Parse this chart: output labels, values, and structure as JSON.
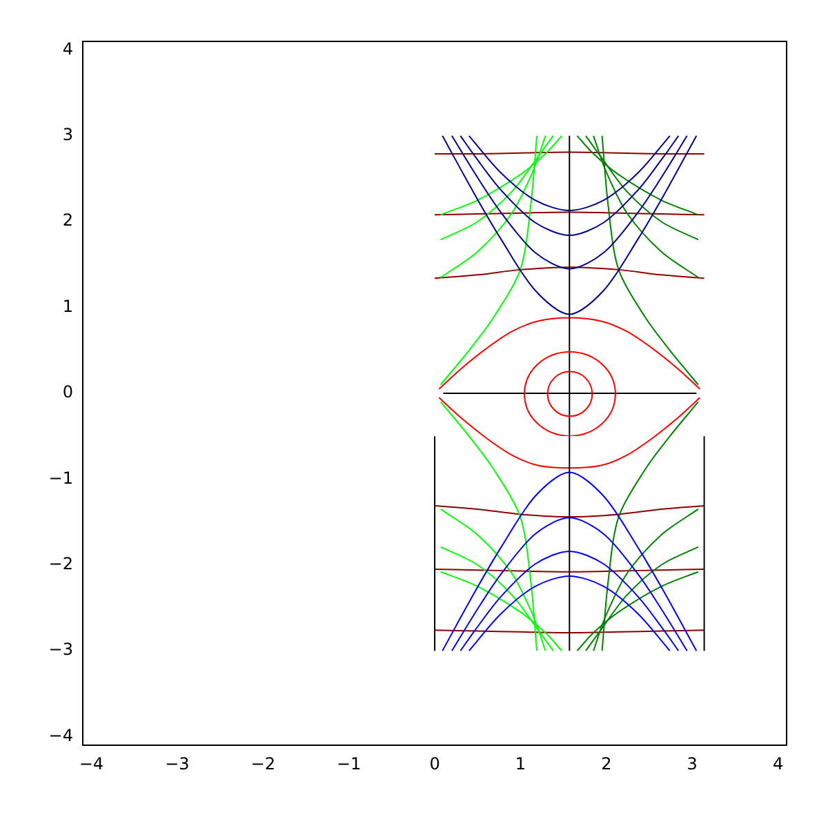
{
  "chart_data": {
    "type": "line",
    "xlim": [
      -4.1,
      4.1
    ],
    "ylim": [
      -4.1,
      4.1
    ],
    "xticks": [
      -4,
      -3,
      -2,
      -1,
      0,
      1,
      2,
      3,
      4
    ],
    "yticks": [
      -4,
      -3,
      -2,
      -1,
      0,
      1,
      2,
      3,
      4
    ],
    "grid": false,
    "legend": false,
    "marker": "none",
    "line_style": "solid",
    "series": [
      {
        "type": "line",
        "color": "#000000",
        "x": [
          1.57,
          1.57
        ],
        "values": [
          -3,
          3
        ]
      },
      {
        "type": "line",
        "color": "#000000",
        "x": [
          0.1,
          3.05
        ],
        "values": [
          0,
          0
        ]
      },
      {
        "type": "line",
        "color": "#000000",
        "x": [
          0,
          0
        ],
        "values": [
          -0.5,
          -3
        ]
      },
      {
        "type": "line",
        "color": "#000000",
        "x": [
          3.14,
          3.14
        ],
        "values": [
          -0.5,
          -3
        ]
      },
      {
        "type": "line",
        "color": "#00008b",
        "x": [
          0.09,
          0.47,
          0.77,
          1.17,
          1.57,
          1.97,
          2.37,
          2.67,
          3.05
        ],
        "values": [
          3.0,
          2.31,
          1.8,
          1.2,
          0.92,
          1.2,
          1.8,
          2.31,
          3.0
        ]
      },
      {
        "type": "line",
        "color": "#00008b",
        "x": [
          0.2,
          0.47,
          0.77,
          1.17,
          1.57,
          1.97,
          2.37,
          2.67,
          2.94
        ],
        "values": [
          3.0,
          2.56,
          2.11,
          1.64,
          1.45,
          1.64,
          2.11,
          2.56,
          3.0
        ]
      },
      {
        "type": "line",
        "color": "#00008b",
        "x": [
          0.3,
          0.47,
          0.77,
          1.17,
          1.57,
          1.97,
          2.37,
          2.67,
          2.84
        ],
        "values": [
          3.0,
          2.76,
          2.37,
          1.99,
          1.84,
          1.99,
          2.37,
          2.76,
          3.0
        ]
      },
      {
        "type": "line",
        "color": "#00008b",
        "x": [
          0.4,
          0.77,
          1.17,
          1.57,
          1.97,
          2.37,
          2.74
        ],
        "values": [
          3.0,
          2.57,
          2.25,
          2.13,
          2.25,
          2.57,
          3.0
        ]
      },
      {
        "type": "line",
        "color": "#0000ff",
        "x": [
          0.09,
          0.47,
          0.77,
          1.17,
          1.57,
          1.97,
          2.37,
          2.67,
          3.05
        ],
        "values": [
          -3.0,
          -2.31,
          -1.8,
          -1.2,
          -0.92,
          -1.2,
          -1.8,
          -2.31,
          -3.0
        ]
      },
      {
        "type": "line",
        "color": "#0000ff",
        "x": [
          0.2,
          0.47,
          0.77,
          1.17,
          1.57,
          1.97,
          2.37,
          2.67,
          2.94
        ],
        "values": [
          -3.0,
          -2.56,
          -2.11,
          -1.64,
          -1.45,
          -1.64,
          -2.11,
          -2.56,
          -3.0
        ]
      },
      {
        "type": "line",
        "color": "#0000ff",
        "x": [
          0.3,
          0.47,
          0.77,
          1.17,
          1.57,
          1.97,
          2.37,
          2.67,
          2.84
        ],
        "values": [
          -3.0,
          -2.76,
          -2.37,
          -1.99,
          -1.84,
          -1.99,
          -2.37,
          -2.76,
          -3.0
        ]
      },
      {
        "type": "line",
        "color": "#0000ff",
        "x": [
          0.4,
          0.77,
          1.17,
          1.57,
          1.97,
          2.37,
          2.74
        ],
        "values": [
          -3.0,
          -2.57,
          -2.25,
          -2.13,
          -2.25,
          -2.57,
          -3.0
        ]
      },
      {
        "type": "line",
        "color": "#00ff00",
        "x": [
          0.07,
          0.4,
          0.69,
          1.0,
          1.12,
          1.19
        ],
        "values": [
          0.1,
          0.5,
          0.89,
          1.45,
          2.2,
          3.0
        ]
      },
      {
        "type": "line",
        "color": "#00ff00",
        "x": [
          0.07,
          0.5,
          0.9,
          1.15,
          1.29
        ],
        "values": [
          1.35,
          1.65,
          2.1,
          2.6,
          3.0
        ]
      },
      {
        "type": "line",
        "color": "#00ff00",
        "x": [
          0.07,
          0.5,
          0.9,
          1.2,
          1.38
        ],
        "values": [
          1.79,
          2.0,
          2.35,
          2.75,
          3.0
        ]
      },
      {
        "type": "line",
        "color": "#00ff00",
        "x": [
          0.07,
          0.5,
          1.0,
          1.3,
          1.48
        ],
        "values": [
          2.08,
          2.25,
          2.55,
          2.8,
          3.0
        ]
      },
      {
        "type": "line",
        "color": "#00ff00",
        "x": [
          0.07,
          0.4,
          0.69,
          1.0,
          1.12,
          1.19
        ],
        "values": [
          -0.1,
          -0.5,
          -0.89,
          -1.45,
          -2.2,
          -3.0
        ]
      },
      {
        "type": "line",
        "color": "#00ff00",
        "x": [
          0.07,
          0.5,
          0.9,
          1.15,
          1.29
        ],
        "values": [
          -1.35,
          -1.65,
          -2.1,
          -2.6,
          -3.0
        ]
      },
      {
        "type": "line",
        "color": "#00ff00",
        "x": [
          0.07,
          0.5,
          0.9,
          1.2,
          1.38
        ],
        "values": [
          -1.79,
          -2.0,
          -2.35,
          -2.75,
          -3.0
        ]
      },
      {
        "type": "line",
        "color": "#00ff00",
        "x": [
          0.07,
          0.5,
          1.0,
          1.3,
          1.48
        ],
        "values": [
          -2.08,
          -2.25,
          -2.55,
          -2.8,
          -3.0
        ]
      },
      {
        "type": "line",
        "color": "#008000",
        "x": [
          3.07,
          2.74,
          2.45,
          2.14,
          2.02,
          1.95
        ],
        "values": [
          0.1,
          0.5,
          0.89,
          1.45,
          2.2,
          3.0
        ]
      },
      {
        "type": "line",
        "color": "#008000",
        "x": [
          3.07,
          2.64,
          2.24,
          1.99,
          1.85
        ],
        "values": [
          1.35,
          1.65,
          2.1,
          2.6,
          3.0
        ]
      },
      {
        "type": "line",
        "color": "#008000",
        "x": [
          3.07,
          2.64,
          2.24,
          1.94,
          1.76
        ],
        "values": [
          1.79,
          2.0,
          2.35,
          2.75,
          3.0
        ]
      },
      {
        "type": "line",
        "color": "#008000",
        "x": [
          3.07,
          2.64,
          2.14,
          1.84,
          1.66
        ],
        "values": [
          2.08,
          2.25,
          2.55,
          2.8,
          3.0
        ]
      },
      {
        "type": "line",
        "color": "#008000",
        "x": [
          3.07,
          2.74,
          2.45,
          2.14,
          2.02,
          1.95
        ],
        "values": [
          -0.1,
          -0.5,
          -0.89,
          -1.45,
          -2.2,
          -3.0
        ]
      },
      {
        "type": "line",
        "color": "#008000",
        "x": [
          3.07,
          2.64,
          2.24,
          1.99,
          1.85
        ],
        "values": [
          -1.35,
          -1.65,
          -2.1,
          -2.6,
          -3.0
        ]
      },
      {
        "type": "line",
        "color": "#008000",
        "x": [
          3.07,
          2.64,
          2.24,
          1.94,
          1.76
        ],
        "values": [
          -1.79,
          -2.0,
          -2.35,
          -2.75,
          -3.0
        ]
      },
      {
        "type": "line",
        "color": "#008000",
        "x": [
          3.07,
          2.64,
          2.14,
          1.84,
          1.66
        ],
        "values": [
          -2.08,
          -2.25,
          -2.55,
          -2.8,
          -3.0
        ]
      },
      {
        "type": "line",
        "color": "#ff0000",
        "x": [
          0.05,
          0.3,
          0.6,
          0.9,
          1.2,
          1.57,
          1.94,
          2.24,
          2.54,
          2.84,
          3.09
        ],
        "values": [
          0.05,
          0.28,
          0.52,
          0.72,
          0.84,
          0.88,
          0.84,
          0.72,
          0.52,
          0.28,
          0.05
        ]
      },
      {
        "type": "line",
        "color": "#ff0000",
        "x": [
          0.05,
          0.3,
          0.6,
          0.9,
          1.2,
          1.57,
          1.94,
          2.24,
          2.54,
          2.84,
          3.09
        ],
        "values": [
          -0.05,
          -0.28,
          -0.52,
          -0.72,
          -0.84,
          -0.87,
          -0.84,
          -0.72,
          -0.52,
          -0.28,
          -0.05
        ]
      },
      {
        "type": "line",
        "color": "#8b0000",
        "x": [
          0,
          0.5,
          1.0,
          1.57,
          2.14,
          2.64,
          3.14
        ],
        "values": [
          2.79,
          2.79,
          2.8,
          2.81,
          2.8,
          2.79,
          2.79
        ]
      },
      {
        "type": "line",
        "color": "#8b0000",
        "x": [
          0,
          0.5,
          1.0,
          1.57,
          2.14,
          2.64,
          3.14
        ],
        "values": [
          2.08,
          2.09,
          2.1,
          2.11,
          2.1,
          2.09,
          2.08
        ]
      },
      {
        "type": "line",
        "color": "#8b0000",
        "x": [
          0,
          0.5,
          1.0,
          1.57,
          2.14,
          2.64,
          3.14
        ],
        "values": [
          1.34,
          1.38,
          1.44,
          1.47,
          1.44,
          1.38,
          1.34
        ]
      },
      {
        "type": "line",
        "color": "#8b0000",
        "x": [
          0,
          0.5,
          1.0,
          1.57,
          2.14,
          2.64,
          3.14
        ],
        "values": [
          -1.31,
          -1.35,
          -1.41,
          -1.44,
          -1.41,
          -1.35,
          -1.31
        ]
      },
      {
        "type": "line",
        "color": "#8b0000",
        "x": [
          0,
          0.5,
          1.0,
          1.57,
          2.14,
          2.64,
          3.14
        ],
        "values": [
          -2.05,
          -2.06,
          -2.07,
          -2.08,
          -2.07,
          -2.06,
          -2.05
        ]
      },
      {
        "type": "line",
        "color": "#8b0000",
        "x": [
          0,
          0.5,
          1.0,
          1.57,
          2.14,
          2.64,
          3.14
        ],
        "values": [
          -2.76,
          -2.77,
          -2.78,
          -2.79,
          -2.78,
          -2.77,
          -2.76
        ]
      }
    ]
  }
}
